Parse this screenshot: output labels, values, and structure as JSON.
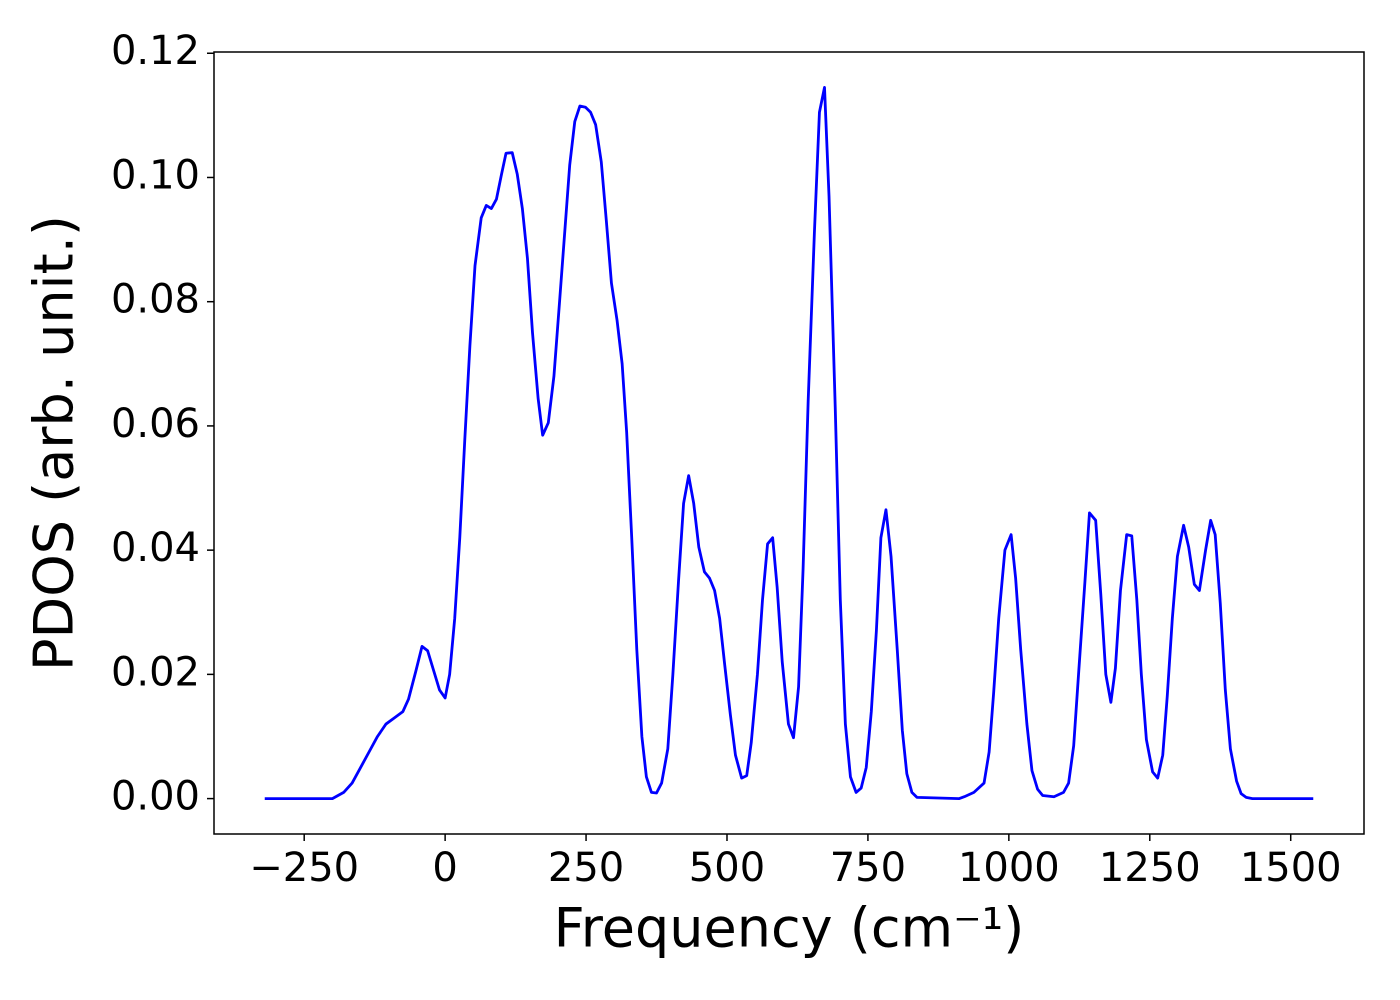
{
  "chart_data": {
    "type": "line",
    "xlabel": "Frequency (cm⁻¹)",
    "ylabel": "PDOS (arb. unit.)",
    "color": "#0000ff",
    "x": [
      -320,
      -200,
      -180,
      -165,
      -150,
      -135,
      -120,
      -105,
      -90,
      -75,
      -65,
      -52,
      -41,
      -31,
      -20,
      -10,
      0,
      8,
      17,
      26,
      35,
      44,
      53,
      64,
      73,
      82,
      91,
      100,
      108,
      119,
      128,
      137,
      146,
      155,
      165,
      173,
      183,
      193,
      203,
      212,
      221,
      230,
      239,
      249,
      258,
      267,
      277,
      286,
      295,
      305,
      314,
      322,
      331,
      340,
      349,
      357,
      366,
      375,
      384,
      395,
      404,
      414,
      423,
      432,
      441,
      450,
      460,
      469,
      478,
      487,
      496,
      506,
      515,
      526,
      535,
      543,
      554,
      563,
      572,
      581,
      589,
      598,
      609,
      618,
      627,
      635,
      644,
      655,
      664,
      673,
      681,
      692,
      701,
      710,
      719,
      729,
      738,
      747,
      756,
      765,
      773,
      782,
      791,
      802,
      811,
      819,
      828,
      837,
      912,
      921,
      938,
      956,
      965,
      973,
      982,
      993,
      1004,
      1012,
      1021,
      1032,
      1041,
      1051,
      1060,
      1080,
      1097,
      1106,
      1115,
      1124,
      1135,
      1143,
      1154,
      1163,
      1172,
      1181,
      1189,
      1198,
      1209,
      1218,
      1227,
      1235,
      1244,
      1255,
      1264,
      1273,
      1281,
      1290,
      1299,
      1310,
      1319,
      1329,
      1338,
      1349,
      1358,
      1366,
      1375,
      1384,
      1393,
      1404,
      1412,
      1421,
      1432,
      1540
    ],
    "values": [
      0,
      0,
      0.001,
      0.0025,
      0.005,
      0.0075,
      0.01,
      0.012,
      0.013,
      0.014,
      0.016,
      0.0205,
      0.0245,
      0.0238,
      0.0205,
      0.0175,
      0.0162,
      0.02,
      0.029,
      0.042,
      0.058,
      0.073,
      0.0858,
      0.0935,
      0.0955,
      0.095,
      0.0965,
      0.1005,
      0.1039,
      0.104,
      0.1005,
      0.095,
      0.087,
      0.075,
      0.0644,
      0.0585,
      0.0605,
      0.068,
      0.08,
      0.091,
      0.102,
      0.109,
      0.1115,
      0.1113,
      0.1105,
      0.1085,
      0.1025,
      0.093,
      0.083,
      0.077,
      0.07,
      0.059,
      0.042,
      0.024,
      0.01,
      0.0035,
      0.001,
      0.0009,
      0.0025,
      0.008,
      0.02,
      0.035,
      0.0475,
      0.052,
      0.0475,
      0.0405,
      0.0365,
      0.0355,
      0.0335,
      0.029,
      0.0215,
      0.0135,
      0.007,
      0.0033,
      0.0037,
      0.009,
      0.02,
      0.032,
      0.041,
      0.042,
      0.034,
      0.022,
      0.012,
      0.0098,
      0.018,
      0.037,
      0.064,
      0.091,
      0.1105,
      0.1145,
      0.097,
      0.063,
      0.032,
      0.012,
      0.0035,
      0.001,
      0.0017,
      0.005,
      0.014,
      0.027,
      0.042,
      0.0465,
      0.039,
      0.024,
      0.011,
      0.004,
      0.001,
      0.0002,
      0,
      0.0003,
      0.001,
      0.0025,
      0.0075,
      0.017,
      0.029,
      0.04,
      0.0425,
      0.0355,
      0.024,
      0.012,
      0.0045,
      0.0015,
      0.0005,
      0.0003,
      0.001,
      0.0025,
      0.0085,
      0.0205,
      0.035,
      0.046,
      0.0448,
      0.033,
      0.02,
      0.0155,
      0.021,
      0.0335,
      0.0425,
      0.0423,
      0.032,
      0.02,
      0.0095,
      0.0043,
      0.0033,
      0.007,
      0.0165,
      0.029,
      0.039,
      0.044,
      0.0405,
      0.0345,
      0.0335,
      0.04,
      0.0448,
      0.0425,
      0.0315,
      0.0175,
      0.008,
      0.0028,
      0.0008,
      0.0002,
      0,
      0
    ],
    "xlim": [
      -410,
      1630
    ],
    "xticks": [
      {
        "value": -250,
        "label": "−250"
      },
      0,
      250,
      500,
      750,
      1000,
      1250,
      1500
    ],
    "ylim": [
      -0.0057,
      0.1202
    ],
    "yticks": [
      {
        "value": 0,
        "label": "0.00"
      },
      0.02,
      0.04,
      0.06,
      0.08,
      {
        "value": 0.1,
        "label": "0.10"
      },
      0.12
    ]
  }
}
